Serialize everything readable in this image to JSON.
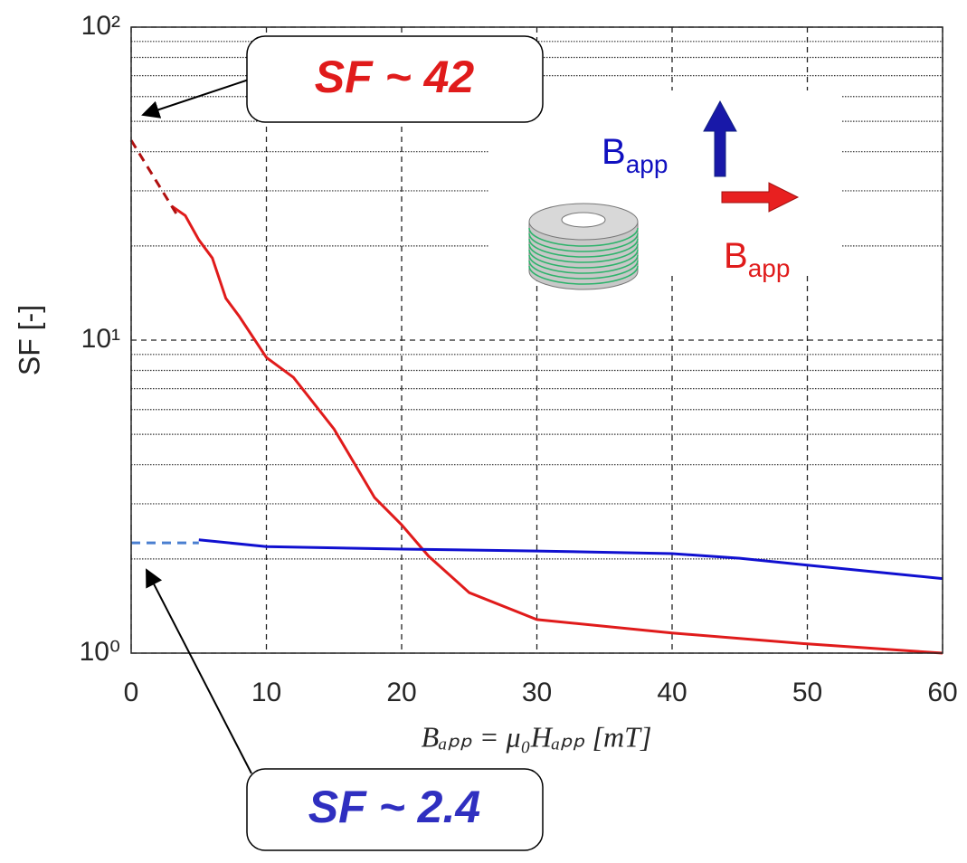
{
  "chart_data": {
    "type": "line",
    "ylabel": "SF [-]",
    "xlabel": "Bₐₚₚ = μ₀Hₐₚₚ [mT]",
    "xlim": [
      0,
      60
    ],
    "xticks": [
      0,
      10,
      20,
      30,
      40,
      50,
      60
    ],
    "ylim": [
      1,
      100
    ],
    "log_y": true,
    "yticks": [
      {
        "value": 1,
        "label": "10⁰"
      },
      {
        "value": 10,
        "label": "10¹"
      },
      {
        "value": 100,
        "label": "10²"
      }
    ],
    "yminorticks": [
      2,
      3,
      4,
      5,
      6,
      7,
      8,
      9,
      20,
      30,
      40,
      50,
      60,
      70,
      80,
      90
    ],
    "grid": true,
    "series": [
      {
        "color": "#e01b1b",
        "dashed": false,
        "x": [
          3,
          4,
          5,
          6,
          7,
          8,
          10,
          12,
          15,
          18,
          20,
          22,
          25,
          30,
          40,
          50,
          60
        ],
        "values": [
          26.8,
          25,
          20.9,
          18.3,
          13.6,
          11.9,
          8.8,
          7.6,
          5.2,
          3.14,
          2.57,
          2.04,
          1.56,
          1.28,
          1.16,
          1.07,
          1.0
        ]
      },
      {
        "color": "#b01010",
        "dashed": true,
        "x": [
          0,
          3.5
        ],
        "values": [
          43.5,
          24.7
        ]
      },
      {
        "color": "#1010d0",
        "dashed": false,
        "x": [
          5,
          10,
          20,
          30,
          40,
          45,
          50,
          60
        ],
        "values": [
          2.3,
          2.19,
          2.15,
          2.12,
          2.08,
          2.01,
          1.91,
          1.73
        ]
      },
      {
        "color": "#4a7fd0",
        "dashed": true,
        "x": [
          0,
          5
        ],
        "values": [
          2.25,
          2.25
        ]
      }
    ],
    "annotations": [
      {
        "text": "SF ~ 42",
        "color": "#e01b1b"
      },
      {
        "text": "SF ~ 2.4",
        "color": "#2f2fc0"
      }
    ],
    "field_labels": [
      {
        "text": "B",
        "sub": "app",
        "color": "#1010c0"
      },
      {
        "text": "B",
        "sub": "app",
        "color": "#e01b1b"
      }
    ]
  }
}
